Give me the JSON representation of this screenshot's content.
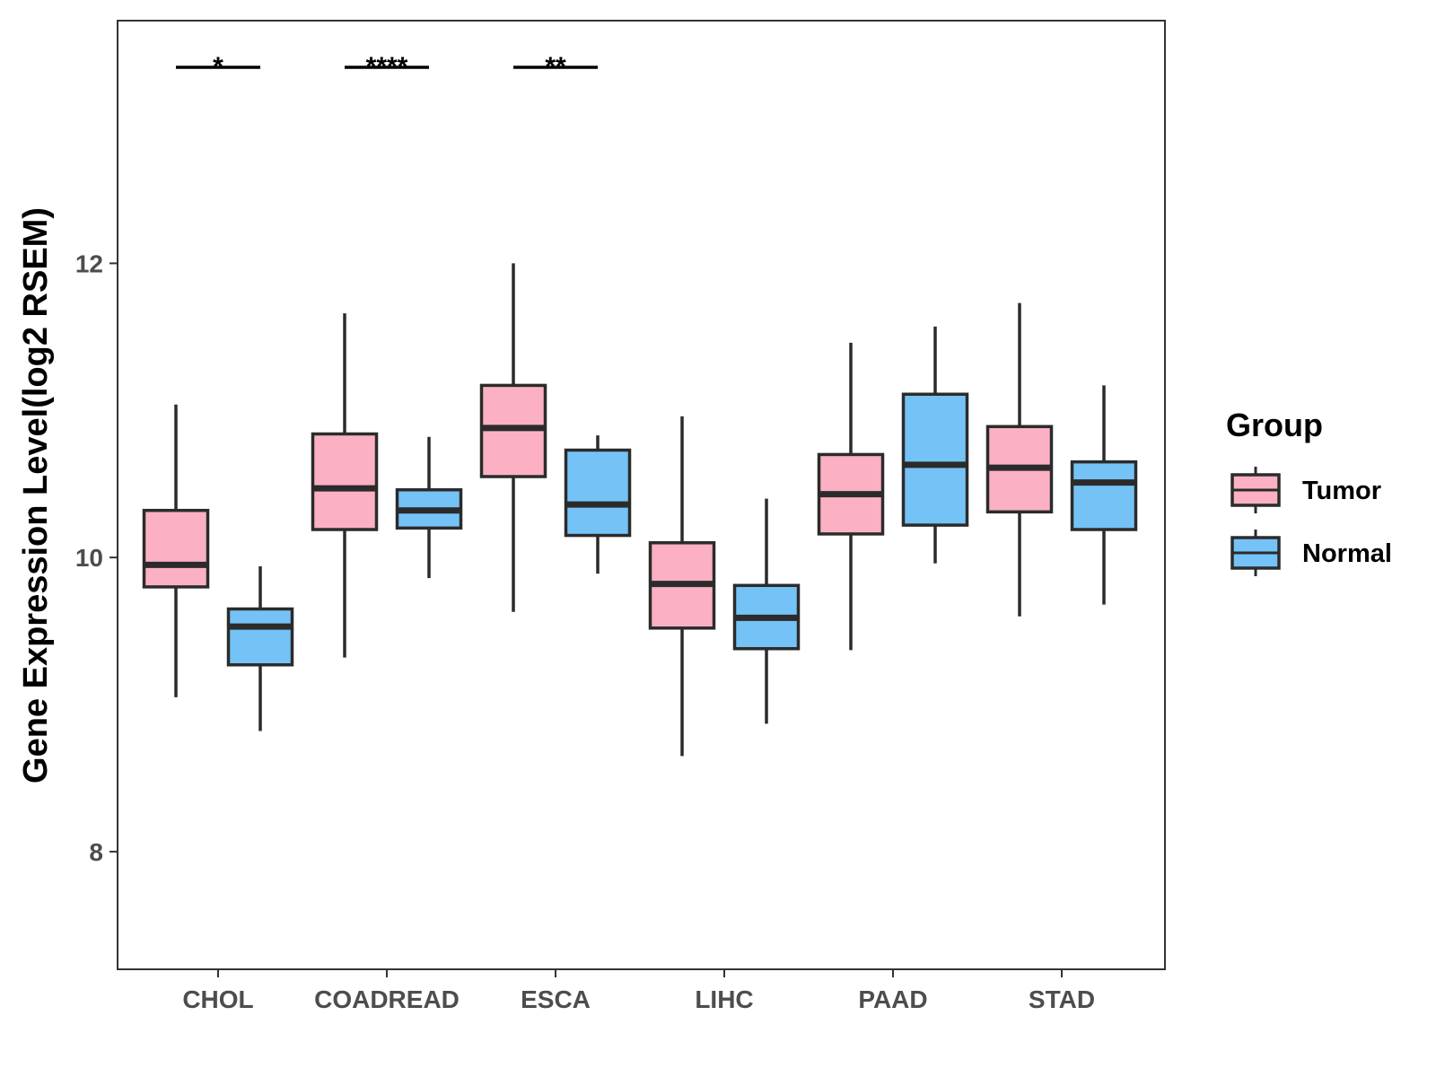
{
  "chart_data": {
    "type": "boxplot",
    "ylabel": "Gene Expression Level(log2 RSEM)",
    "xlabel": "",
    "ylim": [
      7.2,
      13.65
    ],
    "yticks": [
      8,
      10,
      12
    ],
    "categories": [
      "CHOL",
      "COADREAD",
      "ESCA",
      "LIHC",
      "PAAD",
      "STAD"
    ],
    "legend": {
      "title": "Group",
      "position": "right",
      "entries": [
        {
          "name": "Tumor",
          "color": "#FBB1C3"
        },
        {
          "name": "Normal",
          "color": "#75C2F6"
        }
      ]
    },
    "series": [
      {
        "name": "Tumor",
        "color": "#FBB1C3",
        "boxes": [
          {
            "category": "CHOL",
            "min": 9.05,
            "q1": 9.8,
            "median": 9.95,
            "q3": 10.32,
            "max": 11.04
          },
          {
            "category": "COADREAD",
            "min": 9.32,
            "q1": 10.19,
            "median": 10.47,
            "q3": 10.84,
            "max": 11.66
          },
          {
            "category": "ESCA",
            "min": 9.63,
            "q1": 10.55,
            "median": 10.88,
            "q3": 11.17,
            "max": 12.0
          },
          {
            "category": "LIHC",
            "min": 8.65,
            "q1": 9.52,
            "median": 9.82,
            "q3": 10.1,
            "max": 10.96
          },
          {
            "category": "PAAD",
            "min": 9.37,
            "q1": 10.16,
            "median": 10.43,
            "q3": 10.7,
            "max": 11.46
          },
          {
            "category": "STAD",
            "min": 9.6,
            "q1": 10.31,
            "median": 10.61,
            "q3": 10.89,
            "max": 11.73
          }
        ]
      },
      {
        "name": "Normal",
        "color": "#75C2F6",
        "boxes": [
          {
            "category": "CHOL",
            "min": 8.82,
            "q1": 9.27,
            "median": 9.53,
            "q3": 9.65,
            "max": 9.94
          },
          {
            "category": "COADREAD",
            "min": 9.86,
            "q1": 10.2,
            "median": 10.32,
            "q3": 10.46,
            "max": 10.82
          },
          {
            "category": "ESCA",
            "min": 9.89,
            "q1": 10.15,
            "median": 10.36,
            "q3": 10.73,
            "max": 10.83
          },
          {
            "category": "LIHC",
            "min": 8.87,
            "q1": 9.38,
            "median": 9.59,
            "q3": 9.81,
            "max": 10.4
          },
          {
            "category": "PAAD",
            "min": 9.96,
            "q1": 10.22,
            "median": 10.63,
            "q3": 11.11,
            "max": 11.57
          },
          {
            "category": "STAD",
            "min": 9.68,
            "q1": 10.19,
            "median": 10.51,
            "q3": 10.65,
            "max": 11.17
          }
        ]
      }
    ],
    "significance": [
      {
        "category": "CHOL",
        "label": "*"
      },
      {
        "category": "COADREAD",
        "label": "****"
      },
      {
        "category": "ESCA",
        "label": "**"
      }
    ]
  }
}
